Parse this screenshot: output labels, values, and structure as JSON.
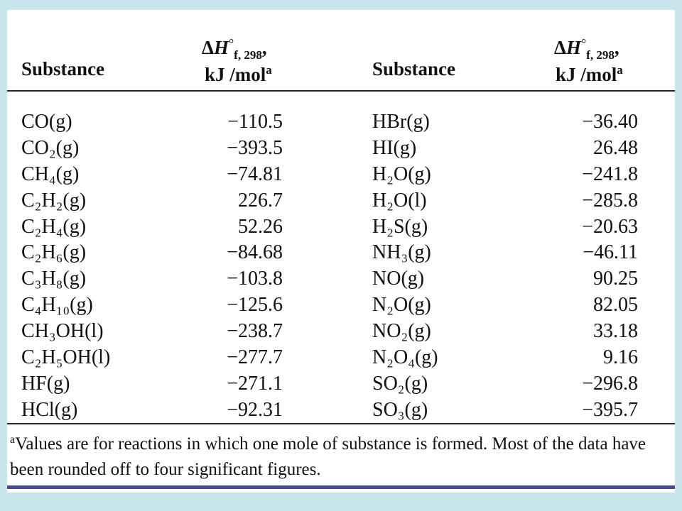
{
  "table": {
    "headers": {
      "substance": "Substance",
      "dh_delta": "Δ",
      "dh_symbol": "H",
      "dh_superscript": "°",
      "dh_subscript": "f, 298",
      "dh_comma": ",",
      "unit": "kJ /mol",
      "unit_note": "a"
    },
    "left_rows": [
      {
        "formula": "CO(g)",
        "value": "−110.5"
      },
      {
        "formula": "CO₂(g)",
        "value": "−393.5"
      },
      {
        "formula": "CH₄(g)",
        "value": "−74.81"
      },
      {
        "formula": "C₂H₂(g)",
        "value": "226.7"
      },
      {
        "formula": "C₂H₄(g)",
        "value": "52.26"
      },
      {
        "formula": "C₂H₆(g)",
        "value": "−84.68"
      },
      {
        "formula": "C₃H₈(g)",
        "value": "−103.8"
      },
      {
        "formula": "C₄H₁₀(g)",
        "value": "−125.6"
      },
      {
        "formula": "CH₃OH(l)",
        "value": "−238.7"
      },
      {
        "formula": "C₂H₅OH(l)",
        "value": "−277.7"
      },
      {
        "formula": "HF(g)",
        "value": "−271.1"
      },
      {
        "formula": "HCl(g)",
        "value": "−92.31"
      }
    ],
    "right_rows": [
      {
        "formula": "HBr(g)",
        "value": "−36.40"
      },
      {
        "formula": "HI(g)",
        "value": "26.48"
      },
      {
        "formula": "H₂O(g)",
        "value": "−241.8"
      },
      {
        "formula": "H₂O(l)",
        "value": "−285.8"
      },
      {
        "formula": "H₂S(g)",
        "value": "−20.63"
      },
      {
        "formula": "NH₃(g)",
        "value": "−46.11"
      },
      {
        "formula": "NO(g)",
        "value": "90.25"
      },
      {
        "formula": "N₂O(g)",
        "value": "82.05"
      },
      {
        "formula": "NO₂(g)",
        "value": "33.18"
      },
      {
        "formula": "N₂O₄(g)",
        "value": "9.16"
      },
      {
        "formula": "SO₂(g)",
        "value": "−296.8"
      },
      {
        "formula": "SO₃(g)",
        "value": "−395.7"
      }
    ]
  },
  "footnote": {
    "mark": "a",
    "text": "Values are for reactions in which one mole of substance is formed. Most of the data have been rounded off to four significant figures."
  },
  "colors": {
    "background": "#c7e5ea",
    "accent_bar": "#4b4b8f"
  }
}
